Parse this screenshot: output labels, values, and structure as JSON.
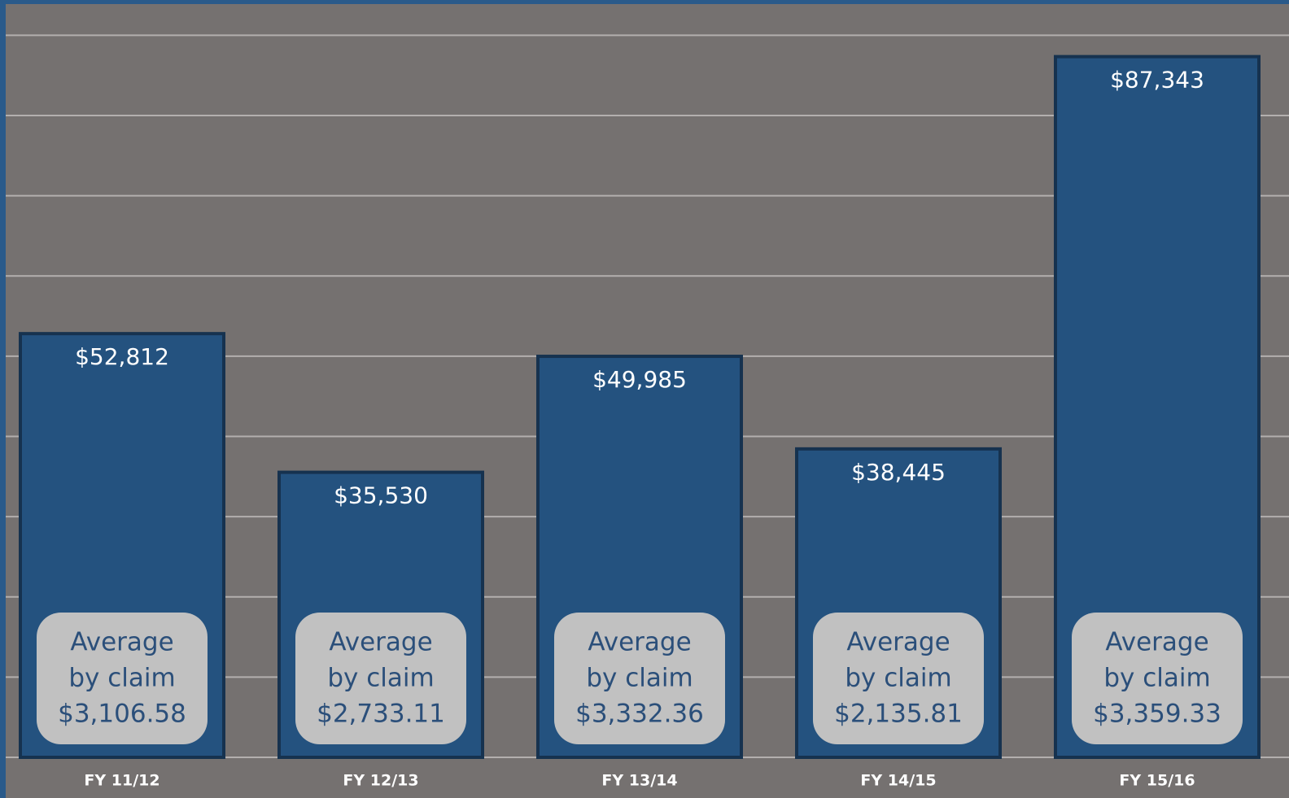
{
  "chart_data": {
    "type": "bar",
    "categories": [
      "FY 11/12",
      "FY 12/13",
      "FY 13/14",
      "FY 14/15",
      "FY 15/16"
    ],
    "values": [
      52812,
      35530,
      49985,
      38445,
      87343
    ],
    "value_labels": [
      "$52,812",
      "$35,530",
      "$49,985",
      "$38,445",
      "$87,343"
    ],
    "average_label": [
      "Average",
      "by claim"
    ],
    "averages": [
      "$3,106.58",
      "$2,733.11",
      "$3,332.36",
      "$2,135.81",
      "$3,359.33"
    ],
    "color": "#24527f",
    "ylim": [
      0,
      94400
    ],
    "yticks": [
      0,
      10000,
      20000,
      30000,
      40000,
      50000,
      60000,
      70000,
      80000,
      90000
    ],
    "grid": true
  }
}
